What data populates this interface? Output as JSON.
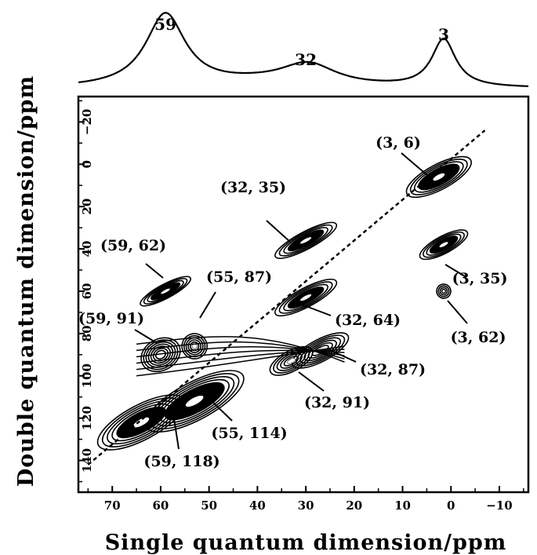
{
  "chart_data": {
    "type": "heatmap",
    "title": "",
    "xlabel": "Single quantum dimension/ppm",
    "ylabel": "Double quantum dimension/ppm",
    "xlim": [
      77,
      -16
    ],
    "ylim": [
      -32,
      155
    ],
    "x_ticks": [
      70,
      60,
      50,
      40,
      30,
      20,
      10,
      0,
      -10
    ],
    "x_tick_labels": [
      "70",
      "60",
      "50",
      "40",
      "30",
      "20",
      "10",
      "0",
      "−10"
    ],
    "y_ticks": [
      -20,
      0,
      20,
      40,
      60,
      80,
      100,
      120,
      140
    ],
    "y_tick_labels": [
      "−20",
      "0",
      "20",
      "40",
      "60",
      "80",
      "100",
      "120",
      "140"
    ],
    "projection": {
      "peaks": [
        {
          "label": "59",
          "position": 59
        },
        {
          "label": "32",
          "position": 30
        },
        {
          "label": "3",
          "position": 1.5
        }
      ]
    },
    "diagonal": [
      [
        75,
        142
      ],
      [
        -7,
        -16
      ]
    ],
    "correlations": [
      {
        "label": "(3, 6)",
        "sq": 2.5,
        "dq": 6
      },
      {
        "label": "(3, 35)",
        "sq": 1.5,
        "dq": 38
      },
      {
        "label": "(3, 62)",
        "sq": 1.5,
        "dq": 60
      },
      {
        "label": "(32, 35)",
        "sq": 30,
        "dq": 36
      },
      {
        "label": "(32, 64)",
        "sq": 30,
        "dq": 63
      },
      {
        "label": "(32, 87)",
        "sq": 27,
        "dq": 88
      },
      {
        "label": "(32, 91)",
        "sq": 33,
        "dq": 93
      },
      {
        "label": "(59, 62)",
        "sq": 59,
        "dq": 60
      },
      {
        "label": "(55, 87)",
        "sq": 53,
        "dq": 86
      },
      {
        "label": "(59, 91)",
        "sq": 60,
        "dq": 90
      },
      {
        "label": "(55, 114)",
        "sq": 53,
        "dq": 112
      },
      {
        "label": "(59, 118)",
        "sq": 64,
        "dq": 122
      }
    ]
  }
}
